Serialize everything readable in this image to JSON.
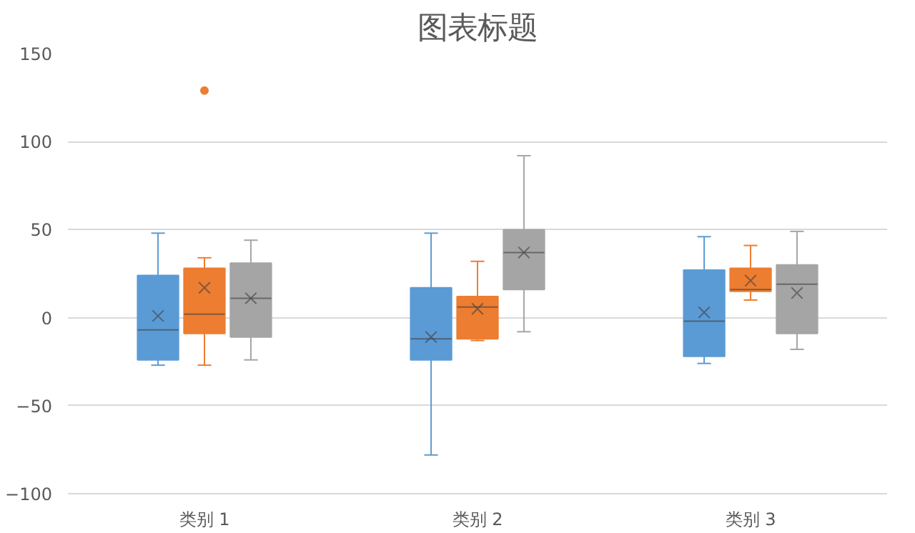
{
  "chart_data": {
    "type": "box",
    "title": "图表标题",
    "categories": [
      "类别 1",
      "类别 2",
      "类别 3"
    ],
    "ylim": [
      -100,
      150
    ],
    "yticks": [
      -100,
      -50,
      0,
      50,
      100,
      150
    ],
    "grid": "y",
    "marker": "cross",
    "series": [
      {
        "color": "#5b9bd5",
        "boxes": [
          {
            "low": -27,
            "q1": -24,
            "median": -7,
            "q3": 24,
            "high": 48,
            "mean": 1
          },
          {
            "low": -78,
            "q1": -24,
            "median": -12,
            "q3": 17,
            "high": 48,
            "mean": -11
          },
          {
            "low": -26,
            "q1": -22,
            "median": -2,
            "q3": 27,
            "high": 46,
            "mean": 3
          }
        ]
      },
      {
        "color": "#ed7d31",
        "boxes": [
          {
            "low": -27,
            "q1": -9,
            "median": 2,
            "q3": 28,
            "high": 34,
            "mean": 17,
            "outliers": [
              129
            ]
          },
          {
            "low": -13,
            "q1": -12,
            "median": 6,
            "q3": 12,
            "high": 32,
            "mean": 5
          },
          {
            "low": 10,
            "q1": 15,
            "median": 16,
            "q3": 28,
            "high": 41,
            "mean": 21
          }
        ]
      },
      {
        "color": "#a5a5a5",
        "boxes": [
          {
            "low": -24,
            "q1": -11,
            "median": 11,
            "q3": 31,
            "high": 44,
            "mean": 11
          },
          {
            "low": -8,
            "q1": 16,
            "median": 37,
            "q3": 50,
            "high": 92,
            "mean": 37
          },
          {
            "low": -18,
            "q1": -9,
            "median": 19,
            "q3": 30,
            "high": 49,
            "mean": 14
          }
        ]
      }
    ]
  }
}
